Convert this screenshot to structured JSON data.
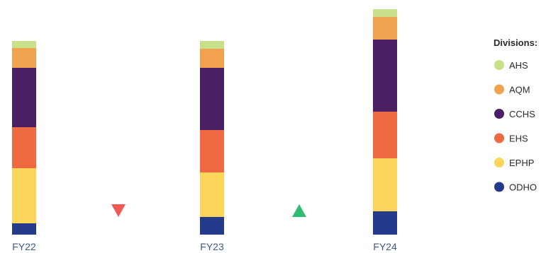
{
  "chart_data": {
    "type": "bar",
    "stacked": true,
    "categories": [
      "FY22",
      "FY23",
      "FY24"
    ],
    "series": [
      {
        "name": "ODHO",
        "color": "#263a8c",
        "values": [
          16,
          25,
          33
        ]
      },
      {
        "name": "EPHP",
        "color": "#fbd45a",
        "values": [
          78,
          63,
          75
        ]
      },
      {
        "name": "EHS",
        "color": "#ef6a43",
        "values": [
          58,
          60,
          66
        ]
      },
      {
        "name": "CCHS",
        "color": "#4b1f63",
        "values": [
          84,
          88,
          102
        ]
      },
      {
        "name": "AQM",
        "color": "#f0a24e",
        "values": [
          28,
          27,
          32
        ]
      },
      {
        "name": "AHS",
        "color": "#c9e08a",
        "values": [
          10,
          11,
          11
        ]
      }
    ],
    "legend": {
      "title": "Divisions:",
      "placement": "right"
    },
    "change_markers": [
      {
        "between": [
          "FY22",
          "FY23"
        ],
        "direction": "down",
        "color": "#ef5a57"
      },
      {
        "between": [
          "FY23",
          "FY24"
        ],
        "direction": "up",
        "color": "#2ebc6e"
      }
    ],
    "ylim": [
      0,
      330
    ],
    "grid": false
  }
}
